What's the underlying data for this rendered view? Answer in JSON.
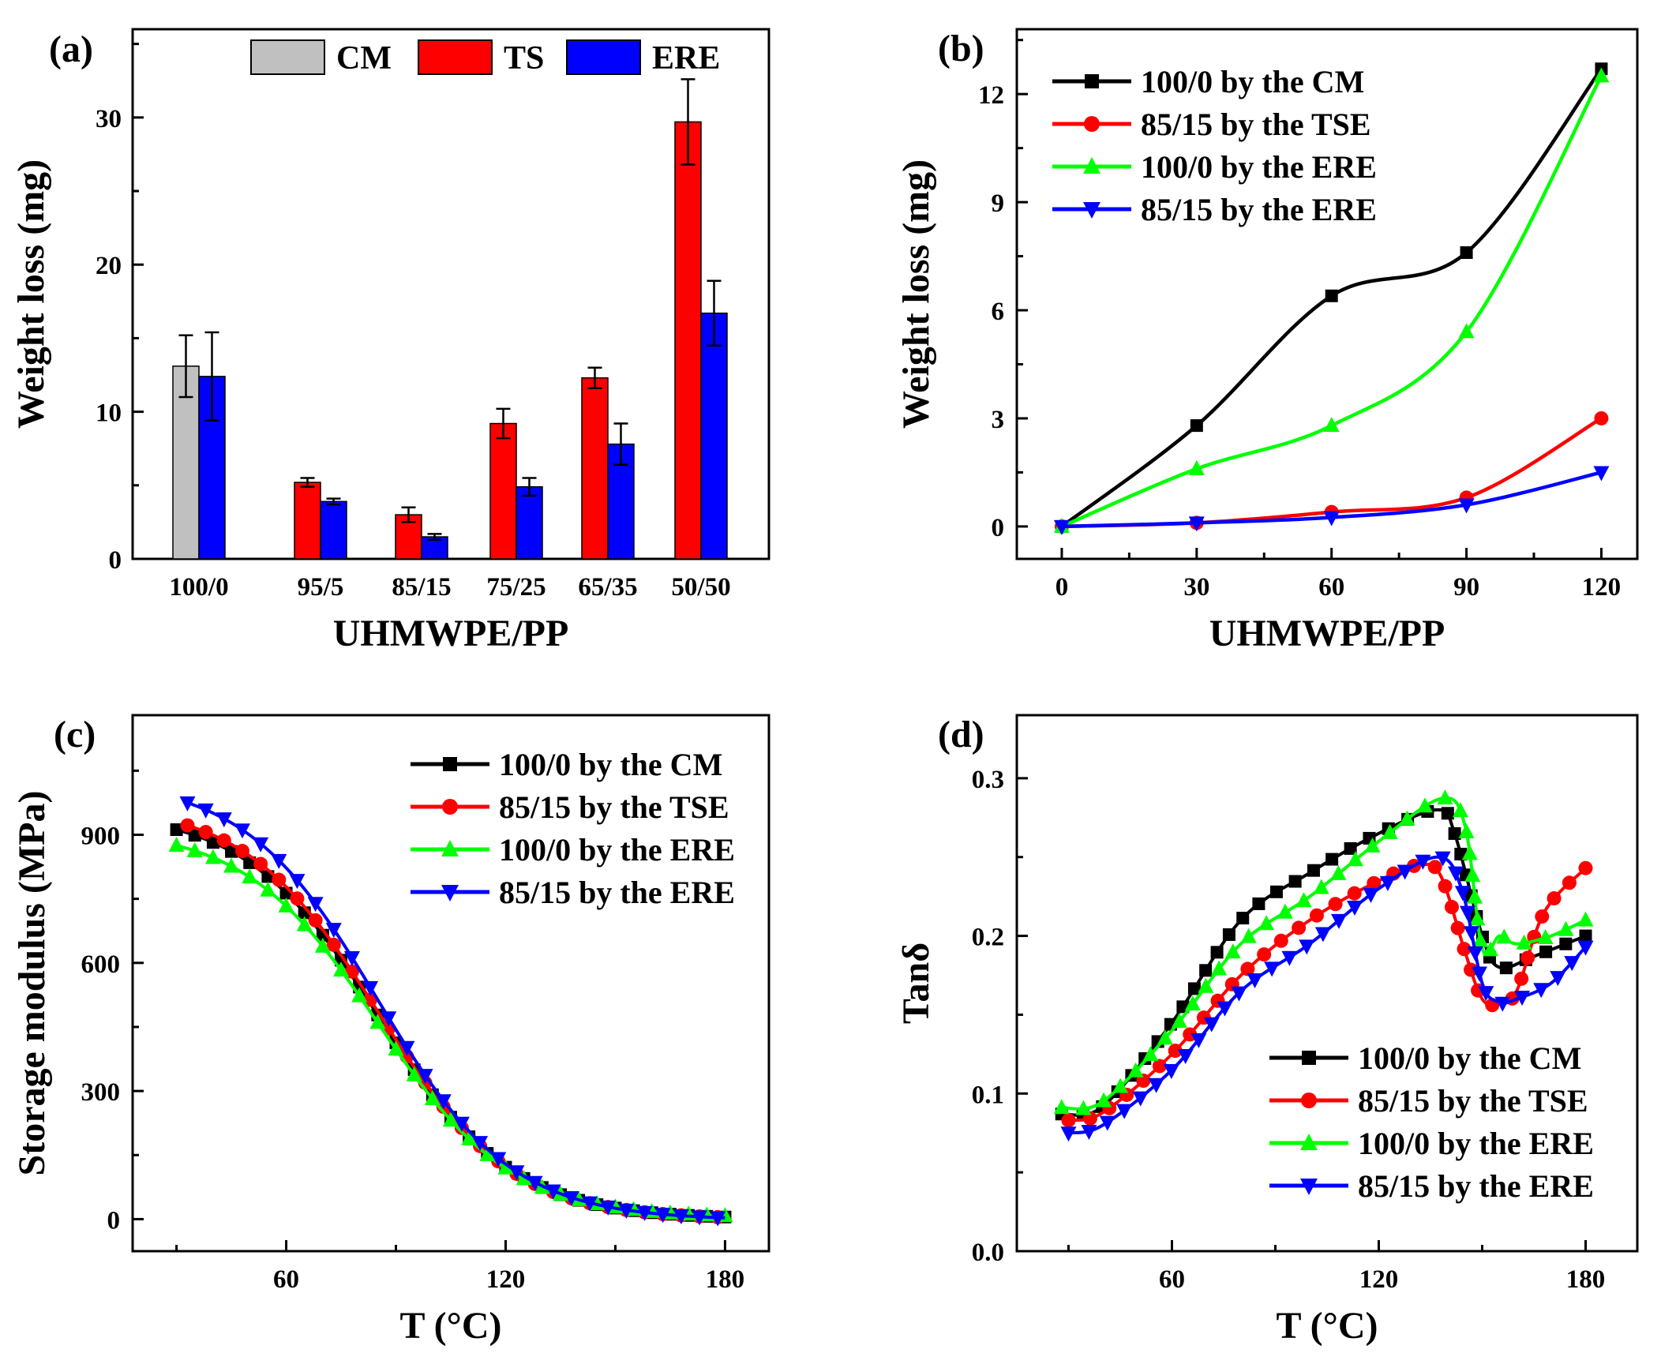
{
  "colors": {
    "CM": "#c0c0c0",
    "TS": "#ff0000",
    "ERE": "#0000ff",
    "black": "#000000",
    "red": "#ff0000",
    "green": "#00ff00",
    "blue": "#0000ff"
  },
  "chart_data": [
    {
      "panel": "(a)",
      "type": "bar",
      "xlabel": "UHMWPE/PP",
      "ylabel": "Weight loss (mg)",
      "ylim": [
        0,
        36
      ],
      "yticks": [
        "0",
        "10",
        "20",
        "30"
      ],
      "categories": [
        "100/0",
        "95/5",
        "85/15",
        "75/25",
        "65/35",
        "50/50"
      ],
      "legend": [
        "CM",
        "TS",
        "ERE"
      ],
      "series": [
        {
          "name": "CM",
          "color_key": "CM",
          "values": [
            13.1,
            null,
            null,
            null,
            null,
            null
          ],
          "errors": [
            2.1,
            null,
            null,
            null,
            null,
            null
          ]
        },
        {
          "name": "TS",
          "color_key": "TS",
          "values": [
            null,
            5.2,
            3.0,
            9.2,
            12.3,
            29.7
          ],
          "errors": [
            null,
            0.3,
            0.5,
            1.0,
            0.7,
            2.9
          ]
        },
        {
          "name": "ERE",
          "color_key": "ERE",
          "values": [
            12.4,
            3.9,
            1.5,
            4.9,
            7.8,
            16.7
          ],
          "errors": [
            3.0,
            0.2,
            0.2,
            0.6,
            1.4,
            2.2
          ]
        }
      ]
    },
    {
      "panel": "(b)",
      "type": "line",
      "xlabel": "UHMWPE/PP",
      "ylabel": "Weight loss (mg)",
      "xlim": [
        -10,
        128
      ],
      "ylim": [
        -0.9,
        13.8
      ],
      "xticks": [
        "0",
        "30",
        "60",
        "90",
        "120"
      ],
      "yticks": [
        "0",
        "3",
        "6",
        "9",
        "12"
      ],
      "series": [
        {
          "name": "100/0 by the CM",
          "color_key": "black",
          "marker": "square",
          "x": [
            0,
            30,
            60,
            90,
            120
          ],
          "y": [
            0,
            2.8,
            6.4,
            7.6,
            12.7
          ]
        },
        {
          "name": "85/15 by the TSE",
          "color_key": "red",
          "marker": "circle",
          "x": [
            0,
            30,
            60,
            90,
            120
          ],
          "y": [
            0,
            0.1,
            0.4,
            0.8,
            3.0
          ]
        },
        {
          "name": "100/0 by the ERE",
          "color_key": "green",
          "marker": "triangle-up",
          "x": [
            0,
            30,
            60,
            90,
            120
          ],
          "y": [
            0,
            1.6,
            2.8,
            5.4,
            12.5
          ]
        },
        {
          "name": "85/15 by the ERE",
          "color_key": "blue",
          "marker": "triangle-down",
          "x": [
            0,
            30,
            60,
            90,
            120
          ],
          "y": [
            0,
            0.1,
            0.25,
            0.6,
            1.5
          ]
        }
      ]
    },
    {
      "panel": "(c)",
      "type": "line",
      "xlabel": "T (°C)",
      "ylabel": "Storage modulus (MPa)",
      "xlim": [
        18,
        192
      ],
      "ylim": [
        -75,
        1180
      ],
      "xticks": [
        "60",
        "120",
        "180"
      ],
      "yticks": [
        "0",
        "300",
        "600",
        "900"
      ],
      "series": [
        {
          "name": "100/0 by the CM",
          "color_key": "black",
          "marker": "square",
          "x": [
            30,
            180
          ],
          "y": [
            912,
            5
          ]
        },
        {
          "name": "85/15 by the TSE",
          "color_key": "red",
          "marker": "circle",
          "x": [
            33,
            180
          ],
          "y": [
            922,
            4
          ]
        },
        {
          "name": "100/0 by the ERE",
          "color_key": "green",
          "marker": "triangle-up",
          "x": [
            30,
            180
          ],
          "y": [
            875,
            8
          ]
        },
        {
          "name": "85/15 by the ERE",
          "color_key": "blue",
          "marker": "triangle-down",
          "x": [
            33,
            180
          ],
          "y": [
            975,
            3
          ]
        }
      ]
    },
    {
      "panel": "(d)",
      "type": "line",
      "xlabel": "T (°C)",
      "ylabel": "Tanδ",
      "xlim": [
        15,
        195
      ],
      "ylim": [
        0,
        0.34
      ],
      "xticks": [
        "60",
        "120",
        "180"
      ],
      "yticks": [
        "0.0",
        "0.1",
        "0.2",
        "0.3"
      ],
      "series": [
        {
          "name": "100/0 by the CM",
          "color_key": "black",
          "marker": "square",
          "x": [
            28,
            40,
            60,
            80,
            100,
            120,
            137,
            142,
            150,
            155,
            165,
            180
          ],
          "y": [
            0.087,
            0.092,
            0.145,
            0.21,
            0.24,
            0.265,
            0.28,
            0.265,
            0.2,
            0.18,
            0.187,
            0.2
          ]
        },
        {
          "name": "85/15 by the TSE",
          "color_key": "red",
          "marker": "circle",
          "x": [
            30,
            40,
            60,
            80,
            100,
            120,
            132,
            138,
            145,
            150,
            155,
            160,
            168,
            180
          ],
          "y": [
            0.083,
            0.088,
            0.125,
            0.175,
            0.21,
            0.235,
            0.245,
            0.238,
            0.19,
            0.16,
            0.157,
            0.165,
            0.215,
            0.243
          ]
        },
        {
          "name": "100/0 by the ERE",
          "color_key": "green",
          "marker": "triangle-up",
          "x": [
            28,
            40,
            60,
            80,
            100,
            120,
            138,
            145,
            150,
            155,
            160,
            170,
            180
          ],
          "y": [
            0.091,
            0.095,
            0.14,
            0.195,
            0.225,
            0.26,
            0.287,
            0.27,
            0.192,
            0.2,
            0.195,
            0.2,
            0.21
          ]
        },
        {
          "name": "85/15 by the ERE",
          "color_key": "blue",
          "marker": "triangle-down",
          "x": [
            30,
            40,
            60,
            80,
            100,
            120,
            137,
            144,
            150,
            155,
            160,
            170,
            180
          ],
          "y": [
            0.075,
            0.08,
            0.115,
            0.165,
            0.195,
            0.23,
            0.25,
            0.23,
            0.17,
            0.158,
            0.16,
            0.17,
            0.193
          ]
        }
      ]
    }
  ]
}
